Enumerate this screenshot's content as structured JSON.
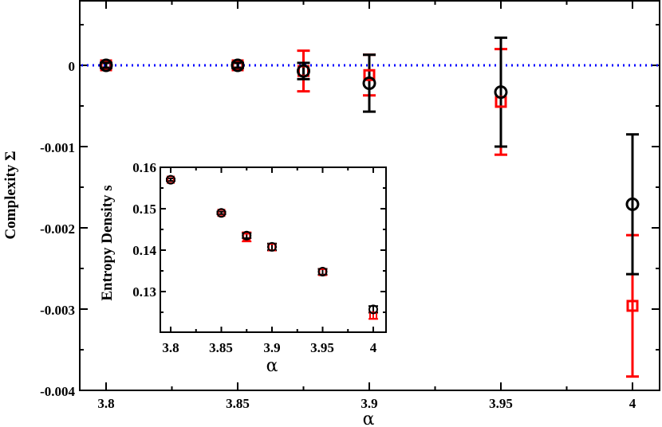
{
  "chart_data": [
    {
      "type": "scatter",
      "xlabel": "α",
      "ylabel": "Complexity Σ",
      "xlim": [
        3.79,
        4.01
      ],
      "ylim": [
        -0.004,
        0.0008
      ],
      "xticks": [
        "3.8",
        "3.85",
        "3.9",
        "3.95",
        "4"
      ],
      "yticks": [
        "0",
        "-0.001",
        "-0.002",
        "-0.003",
        "-0.004"
      ],
      "reference_line": {
        "y": 0,
        "color": "#0000ff",
        "style": "dotted"
      },
      "series": [
        {
          "marker": "circle",
          "color": "#000000",
          "points": [
            {
              "x": 3.8,
              "y": 0.0,
              "err": 3e-05
            },
            {
              "x": 3.85,
              "y": 0.0,
              "err": 3e-05
            },
            {
              "x": 3.875,
              "y": -7e-05,
              "err": 0.0001
            },
            {
              "x": 3.9,
              "y": -0.00022,
              "err": 0.00035
            },
            {
              "x": 3.95,
              "y": -0.00033,
              "err": 0.00067
            },
            {
              "x": 4.0,
              "y": -0.00171,
              "err": 0.00086
            }
          ]
        },
        {
          "marker": "square",
          "color": "#ff0000",
          "points": [
            {
              "x": 3.8,
              "y": 0.0,
              "err": 3e-05
            },
            {
              "x": 3.85,
              "y": 0.0,
              "err": 3e-05
            },
            {
              "x": 3.875,
              "y": -7e-05,
              "err": 0.00025
            },
            {
              "x": 3.9,
              "y": -0.00012,
              "err": 0.00025
            },
            {
              "x": 3.95,
              "y": -0.00045,
              "err": 0.00065
            },
            {
              "x": 4.0,
              "y": -0.00296,
              "err": 0.00087
            }
          ]
        }
      ]
    },
    {
      "type": "scatter",
      "xlabel": "α",
      "ylabel": "Entropy Density s",
      "xlim": [
        3.79,
        4.01
      ],
      "ylim": [
        0.121,
        0.161
      ],
      "xticks": [
        "3.8",
        "3.85",
        "3.9",
        "3.95",
        "4"
      ],
      "yticks": [
        "0.13",
        "0.14",
        "0.15",
        "0.16"
      ],
      "series": [
        {
          "marker": "circle",
          "color": "#000000",
          "points": [
            {
              "x": 3.8,
              "y": 0.157,
              "err": 0.0003
            },
            {
              "x": 3.85,
              "y": 0.149,
              "err": 0.0003
            },
            {
              "x": 3.875,
              "y": 0.1435,
              "err": 0.0006
            },
            {
              "x": 3.9,
              "y": 0.1408,
              "err": 0.0008
            },
            {
              "x": 3.95,
              "y": 0.1348,
              "err": 0.0007
            },
            {
              "x": 4.0,
              "y": 0.1257,
              "err": 0.0008
            }
          ]
        },
        {
          "marker": "square",
          "color": "#ff0000",
          "points": [
            {
              "x": 3.8,
              "y": 0.157,
              "err": 0.0003
            },
            {
              "x": 3.85,
              "y": 0.149,
              "err": 0.0003
            },
            {
              "x": 3.875,
              "y": 0.1432,
              "err": 0.0011
            },
            {
              "x": 3.9,
              "y": 0.1407,
              "err": 0.0008
            },
            {
              "x": 3.95,
              "y": 0.1347,
              "err": 0.0007
            },
            {
              "x": 4.0,
              "y": 0.1242,
              "err": 0.0008
            }
          ]
        }
      ]
    }
  ]
}
